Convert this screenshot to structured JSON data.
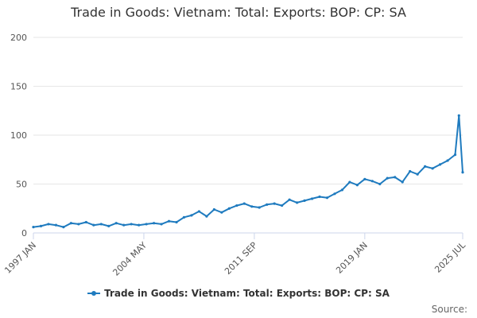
{
  "chart_data": {
    "type": "line",
    "title": "Trade in Goods: Vietnam: Total: Exports: BOP: CP: SA",
    "xlabel": "",
    "ylabel": "",
    "x_range": [
      "1997 JAN",
      "2025 JUL"
    ],
    "ylim": [
      0,
      200
    ],
    "y_ticks": [
      0,
      50,
      100,
      150,
      200
    ],
    "x_tick_labels": [
      "1997 JAN",
      "2004 MAY",
      "2011 SEP",
      "2019 JAN",
      "2025 JUL"
    ],
    "grid": "horizontal",
    "legend_position": "bottom-center",
    "series": [
      {
        "name": "Trade in Goods: Vietnam: Total: Exports: BOP: CP: SA",
        "color": "#1f7bbf",
        "x": [
          "1997-01",
          "1997-07",
          "1998-01",
          "1998-07",
          "1999-01",
          "1999-07",
          "2000-01",
          "2000-07",
          "2001-01",
          "2001-07",
          "2002-01",
          "2002-07",
          "2003-01",
          "2003-07",
          "2004-01",
          "2004-07",
          "2005-01",
          "2005-07",
          "2006-01",
          "2006-07",
          "2007-01",
          "2007-07",
          "2008-01",
          "2008-07",
          "2009-01",
          "2009-07",
          "2010-01",
          "2010-07",
          "2011-01",
          "2011-07",
          "2012-01",
          "2012-07",
          "2013-01",
          "2013-07",
          "2014-01",
          "2014-07",
          "2015-01",
          "2015-07",
          "2016-01",
          "2016-07",
          "2017-01",
          "2017-07",
          "2018-01",
          "2018-07",
          "2019-01",
          "2019-07",
          "2020-01",
          "2020-07",
          "2021-01",
          "2021-07",
          "2022-01",
          "2022-07",
          "2023-01",
          "2023-07",
          "2024-01",
          "2024-07",
          "2025-01",
          "2025-04",
          "2025-07"
        ],
        "values": [
          6,
          7,
          9,
          8,
          6,
          10,
          9,
          11,
          8,
          9,
          7,
          10,
          8,
          9,
          8,
          9,
          10,
          9,
          12,
          11,
          16,
          18,
          22,
          17,
          24,
          21,
          25,
          28,
          30,
          27,
          26,
          29,
          30,
          28,
          34,
          31,
          33,
          35,
          37,
          36,
          40,
          44,
          52,
          49,
          55,
          53,
          50,
          56,
          57,
          52,
          63,
          60,
          68,
          66,
          70,
          74,
          80,
          120,
          62
        ]
      }
    ]
  },
  "legend": {
    "label": "Trade in Goods: Vietnam: Total: Exports: BOP: CP: SA"
  },
  "credits": {
    "text": "Source:"
  }
}
